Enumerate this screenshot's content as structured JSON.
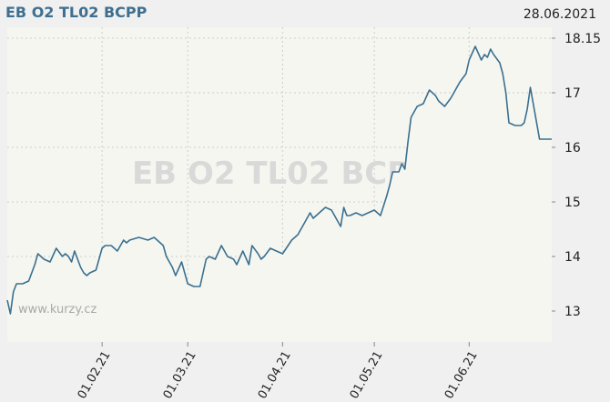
{
  "header": {
    "title": "EB O2 TL02 BCPP",
    "date": "28.06.2021"
  },
  "watermark": "EB O2 TL02 BCPP",
  "source_label": "www.kurzy.cz",
  "colors": {
    "line": "#3a7090",
    "area": "#f6f6f0",
    "grid": "#cccccc",
    "background": "#f0f0f0",
    "title": "#3f6f8f"
  },
  "chart_data": {
    "type": "area",
    "title": "",
    "xlabel": "",
    "ylabel": "",
    "ylim": [
      12.65,
      18.15
    ],
    "y_ticks": [
      "13",
      "14",
      "15",
      "16",
      "17",
      "18.15"
    ],
    "y_tick_values": [
      13,
      14,
      15,
      16,
      17,
      18.15
    ],
    "x_ticks": [
      "01.02.21",
      "01.03.21",
      "01.04.21",
      "01.05.21",
      "01.06.21"
    ],
    "x_tick_dates": [
      "2021-02-01",
      "2021-03-01",
      "2021-04-01",
      "2021-05-01",
      "2021-06-01"
    ],
    "x_range": [
      "2021-01-01",
      "2021-06-28"
    ],
    "grid": true,
    "series": [
      {
        "x": [
          "2021-01-01",
          "2021-01-02",
          "2021-01-03",
          "2021-01-04",
          "2021-01-06",
          "2021-01-08",
          "2021-01-10",
          "2021-01-11",
          "2021-01-13",
          "2021-01-15",
          "2021-01-17",
          "2021-01-19",
          "2021-01-20",
          "2021-01-21",
          "2021-01-22",
          "2021-01-23",
          "2021-01-25",
          "2021-01-26",
          "2021-01-27",
          "2021-01-28",
          "2021-01-30",
          "2021-02-01",
          "2021-02-02",
          "2021-02-04",
          "2021-02-06",
          "2021-02-08",
          "2021-02-09",
          "2021-02-10",
          "2021-02-13",
          "2021-02-16",
          "2021-02-18",
          "2021-02-20",
          "2021-02-21",
          "2021-02-22",
          "2021-02-24",
          "2021-02-25",
          "2021-02-27",
          "2021-03-01",
          "2021-03-03",
          "2021-03-05",
          "2021-03-07",
          "2021-03-08",
          "2021-03-10",
          "2021-03-12",
          "2021-03-14",
          "2021-03-16",
          "2021-03-17",
          "2021-03-19",
          "2021-03-21",
          "2021-03-22",
          "2021-03-24",
          "2021-03-25",
          "2021-03-26",
          "2021-03-28",
          "2021-03-30",
          "2021-04-01",
          "2021-04-04",
          "2021-04-06",
          "2021-04-08",
          "2021-04-10",
          "2021-04-11",
          "2021-04-13",
          "2021-04-15",
          "2021-04-17",
          "2021-04-19",
          "2021-04-20",
          "2021-04-21",
          "2021-04-22",
          "2021-04-23",
          "2021-04-25",
          "2021-04-27",
          "2021-04-29",
          "2021-05-01",
          "2021-05-03",
          "2021-05-05",
          "2021-05-06",
          "2021-05-07",
          "2021-05-09",
          "2021-05-10",
          "2021-05-11",
          "2021-05-12",
          "2021-05-13",
          "2021-05-15",
          "2021-05-17",
          "2021-05-19",
          "2021-05-21",
          "2021-05-22",
          "2021-05-24",
          "2021-05-26",
          "2021-05-27",
          "2021-05-29",
          "2021-05-31",
          "2021-06-01",
          "2021-06-03",
          "2021-06-05",
          "2021-06-06",
          "2021-06-07",
          "2021-06-08",
          "2021-06-09",
          "2021-06-11",
          "2021-06-12",
          "2021-06-13",
          "2021-06-14",
          "2021-06-16",
          "2021-06-18",
          "2021-06-19",
          "2021-06-20",
          "2021-06-21",
          "2021-06-24",
          "2021-06-28"
        ],
        "y": [
          13.2,
          12.95,
          13.35,
          13.5,
          13.5,
          13.55,
          13.85,
          14.05,
          13.95,
          13.9,
          14.15,
          14.0,
          14.05,
          14.0,
          13.9,
          14.1,
          13.8,
          13.7,
          13.65,
          13.7,
          13.75,
          14.15,
          14.2,
          14.2,
          14.1,
          14.3,
          14.25,
          14.3,
          14.35,
          14.3,
          14.35,
          14.25,
          14.2,
          14.0,
          13.8,
          13.65,
          13.9,
          13.5,
          13.45,
          13.45,
          13.95,
          14.0,
          13.95,
          14.2,
          14.0,
          13.95,
          13.85,
          14.1,
          13.85,
          14.2,
          14.05,
          13.95,
          14.0,
          14.15,
          14.1,
          14.05,
          14.3,
          14.4,
          14.6,
          14.8,
          14.7,
          14.8,
          14.9,
          14.85,
          14.65,
          14.55,
          14.9,
          14.75,
          14.75,
          14.8,
          14.75,
          14.8,
          14.85,
          14.75,
          15.1,
          15.3,
          15.55,
          15.55,
          15.7,
          15.6,
          16.1,
          16.55,
          16.75,
          16.8,
          17.05,
          16.95,
          16.85,
          16.75,
          16.9,
          17.0,
          17.2,
          17.35,
          17.6,
          17.85,
          17.6,
          17.7,
          17.65,
          17.8,
          17.7,
          17.55,
          17.35,
          17.0,
          16.45,
          16.4,
          16.4,
          16.45,
          16.7,
          17.1,
          16.15,
          16.15
        ]
      }
    ]
  }
}
